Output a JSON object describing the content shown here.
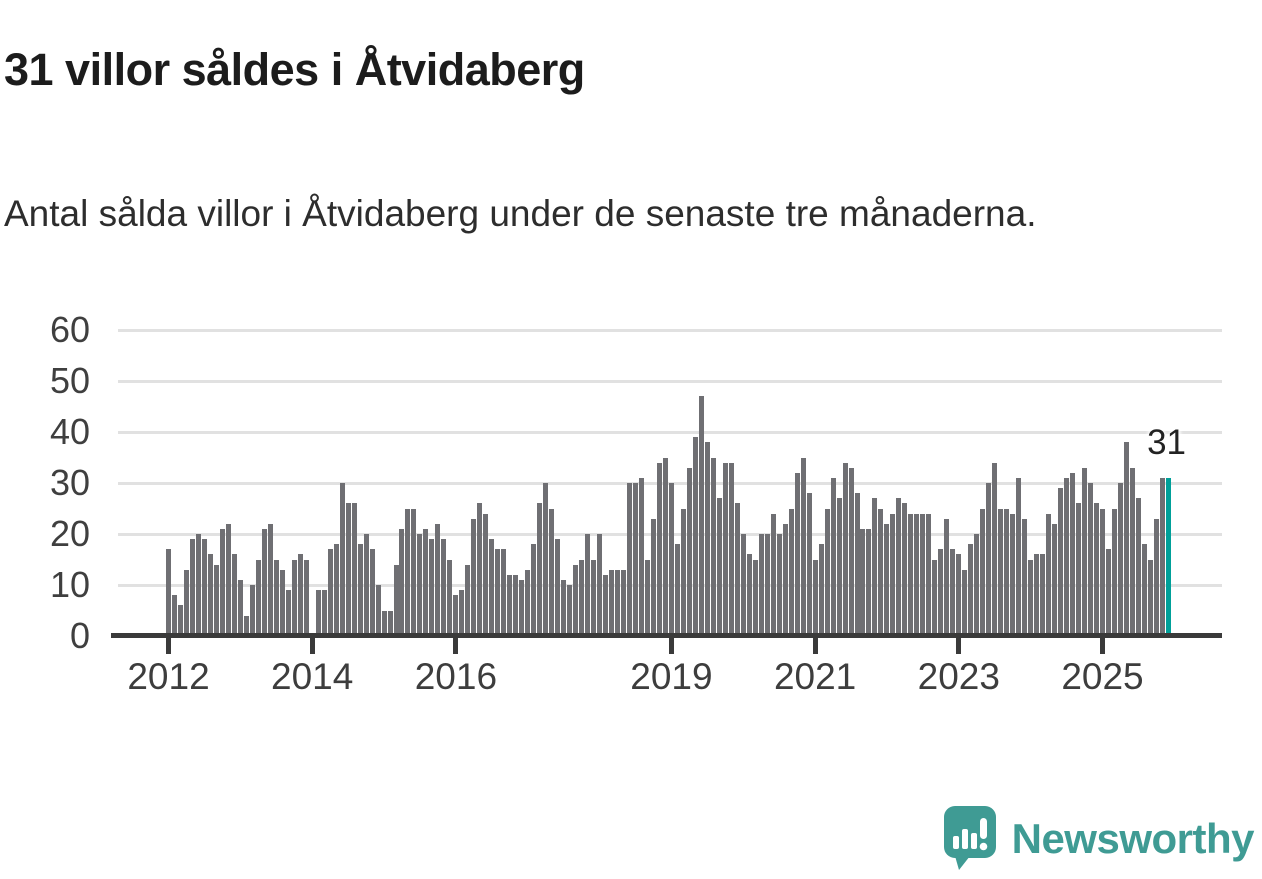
{
  "header": {
    "title": "31 villor såldes i Åtvidaberg",
    "subtitle": "Antal sålda villor i Åtvidaberg under de senaste tre månaderna."
  },
  "chart_data": {
    "type": "bar",
    "title": "31 villor såldes i Åtvidaberg",
    "subtitle": "Antal sålda villor i Åtvidaberg under de senaste tre månaderna.",
    "unit": "antal sålda villor (rullande tre månader)",
    "frequency": "monthly",
    "x_start": "2012-01",
    "values": [
      17,
      8,
      6,
      13,
      19,
      20,
      19,
      16,
      14,
      21,
      22,
      16,
      11,
      4,
      10,
      15,
      21,
      22,
      15,
      13,
      9,
      15,
      16,
      15,
      0,
      9,
      9,
      17,
      18,
      30,
      26,
      26,
      18,
      20,
      17,
      10,
      5,
      5,
      14,
      21,
      25,
      25,
      20,
      21,
      19,
      22,
      19,
      15,
      8,
      9,
      14,
      23,
      26,
      24,
      19,
      17,
      17,
      12,
      12,
      11,
      13,
      18,
      26,
      30,
      25,
      19,
      11,
      10,
      14,
      15,
      20,
      15,
      20,
      12,
      13,
      13,
      13,
      30,
      30,
      31,
      15,
      23,
      34,
      35,
      30,
      18,
      25,
      33,
      39,
      47,
      38,
      35,
      27,
      34,
      34,
      26,
      20,
      16,
      15,
      20,
      20,
      24,
      20,
      22,
      25,
      32,
      35,
      28,
      15,
      18,
      25,
      31,
      27,
      34,
      33,
      28,
      21,
      21,
      27,
      25,
      22,
      24,
      27,
      26,
      24,
      24,
      24,
      24,
      15,
      17,
      23,
      17,
      16,
      13,
      18,
      20,
      25,
      30,
      34,
      25,
      25,
      24,
      31,
      23,
      15,
      16,
      16,
      24,
      22,
      29,
      31,
      32,
      26,
      33,
      30,
      26,
      25,
      17,
      25,
      30,
      38,
      33,
      27,
      18,
      15,
      23,
      31,
      31
    ],
    "highlight_last": true,
    "annotation_label": "31",
    "bar_color": "#6f6f73",
    "highlight_color": "#00a099",
    "grid": "horizontal",
    "gridline_color": "#e1e1e1",
    "axis_color": "#3a3a3a",
    "ylim": [
      0,
      62
    ],
    "yticks": [
      0,
      10,
      20,
      30,
      40,
      50,
      60
    ],
    "xticks": [
      {
        "label": "2012",
        "month_index": 0
      },
      {
        "label": "2014",
        "month_index": 24
      },
      {
        "label": "2016",
        "month_index": 48
      },
      {
        "label": "2019",
        "month_index": 84
      },
      {
        "label": "2021",
        "month_index": 108
      },
      {
        "label": "2023",
        "month_index": 132
      },
      {
        "label": "2025",
        "month_index": 156
      }
    ],
    "legend": "none"
  },
  "footer": {
    "brand": "Newsworthy",
    "brand_color": "#3f9b94"
  }
}
